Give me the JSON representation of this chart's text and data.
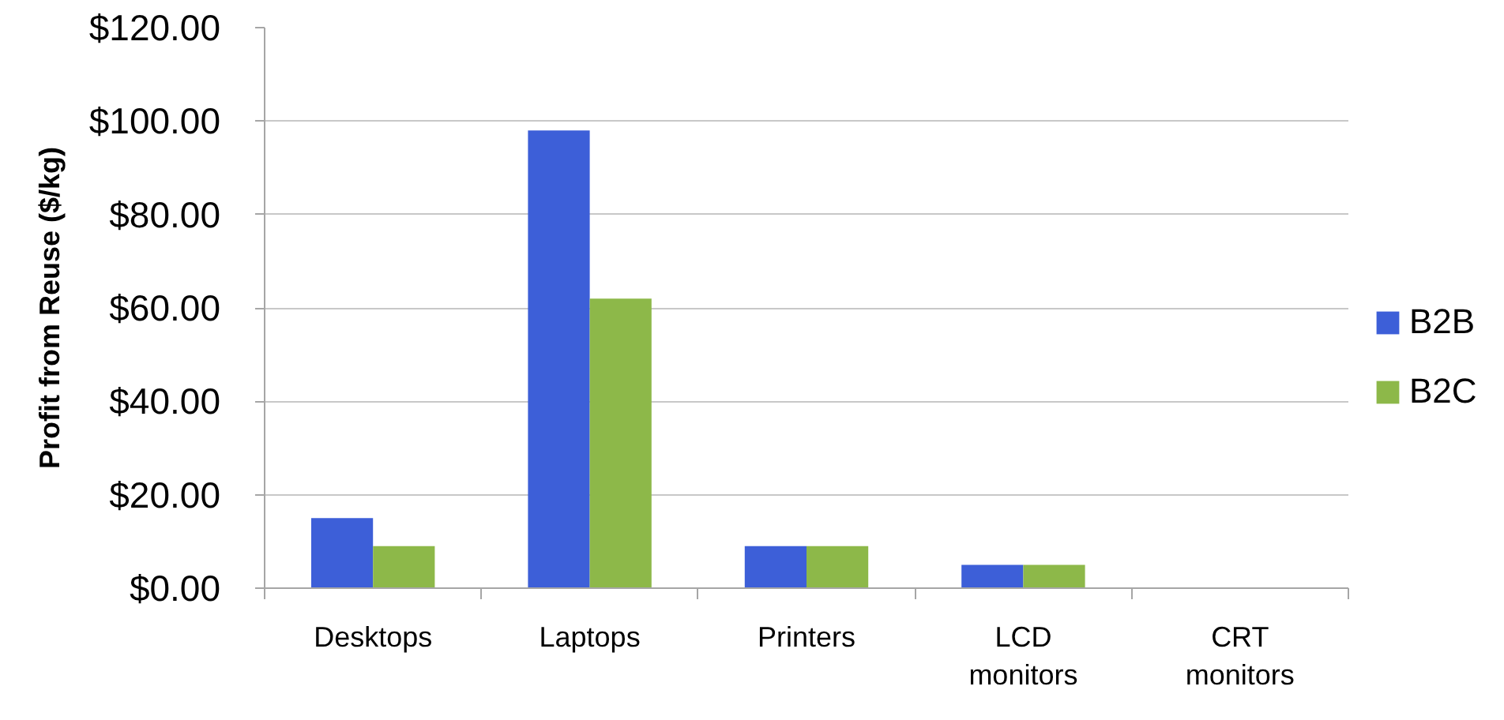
{
  "chart_data": {
    "type": "bar",
    "ylabel": "Profit from Reuse ($/kg)",
    "categories": [
      "Desktops",
      "Laptops",
      "Printers",
      "LCD monitors",
      "CRT monitors"
    ],
    "series": [
      {
        "name": "B2B",
        "color": "#3d5fd8",
        "values": [
          15,
          98,
          9,
          5,
          0
        ]
      },
      {
        "name": "B2C",
        "color": "#8db849",
        "values": [
          9,
          62,
          9,
          5,
          0
        ]
      }
    ],
    "ylim": [
      0,
      120
    ],
    "yticks": [
      {
        "value": 0,
        "label": "$0.00"
      },
      {
        "value": 20,
        "label": "$20.00"
      },
      {
        "value": 40,
        "label": "$40.00"
      },
      {
        "value": 60,
        "label": "$60.00"
      },
      {
        "value": 80,
        "label": "$80.00"
      },
      {
        "value": 100,
        "label": "$100.00"
      },
      {
        "value": 120,
        "label": "$120.00"
      }
    ],
    "grid": "y",
    "legend": "right"
  }
}
